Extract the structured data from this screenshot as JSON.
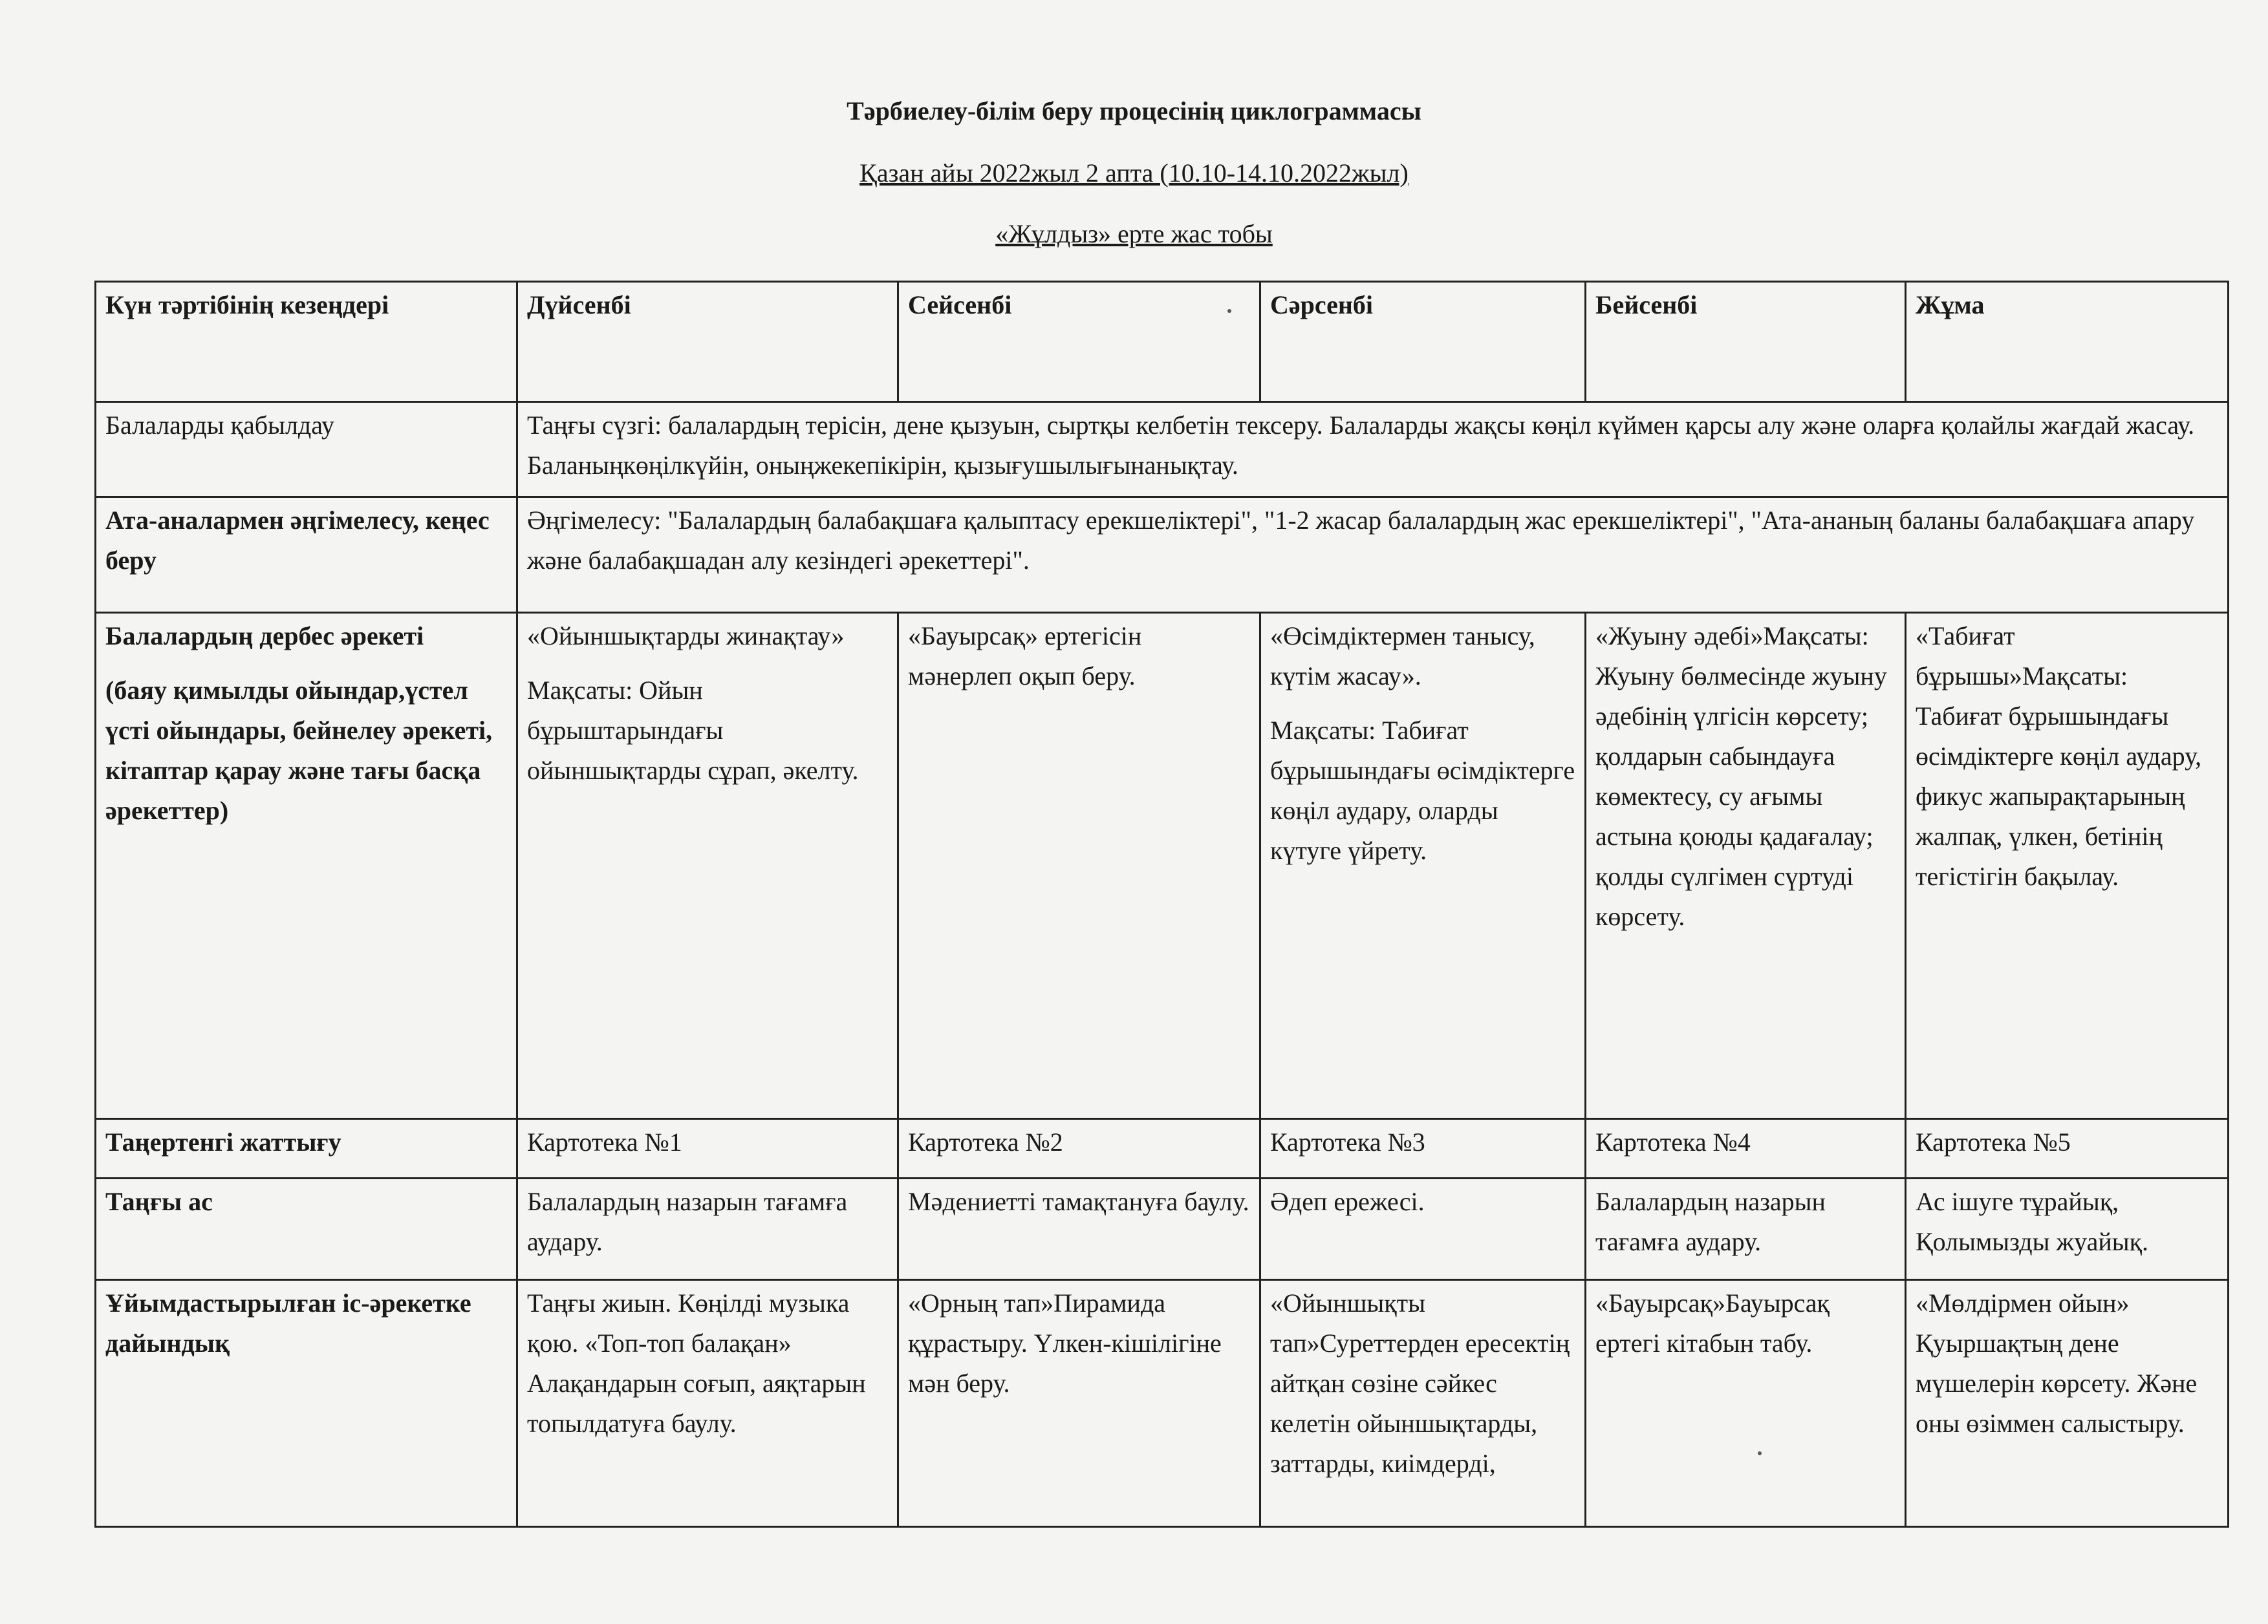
{
  "header": {
    "title": "Тәрбиелеу-білім беру процесінің циклограммасы",
    "period": "Қазан айы 2022жыл 2 апта (10.10-14.10.2022жыл)",
    "group": "«Жұлдыз» ерте жас тобы"
  },
  "table": {
    "columns": [
      "Күн тәртібінің кезеңдері",
      "Дүйсенбі",
      "Сейсенбі",
      "Сәрсенбі",
      "Бейсенбі",
      "Жұма"
    ],
    "reception": {
      "label": "Балаларды қабылдау",
      "text": "Таңғы сүзгі: балалардың терісін, дене қызуын, сыртқы келбетін тексеру. Балаларды жақсы көңіл күймен қарсы алу және оларға қолайлы жағдай жасау. Баланыңкөңілкүйін, оныңжекепікірін, қызығушылығынанықтау."
    },
    "parents": {
      "label": "Ата-аналармен әңгімелесу, кеңес беру",
      "text": "Әңгімелесу: \"Балалардың балабақшаға қалыптасу ерекшеліктері\", \"1-2 жасар балалардың жас ерекшеліктері\", \"Ата-ананың баланы балабақшаға апару және балабақшадан алу кезіндегі әрекеттері\"."
    },
    "independent": {
      "label": "Балалардың дербес әрекеті",
      "sublabel": "(баяу қимылды ойындар,үстел үсті ойындары, бейнелеу әрекеті, кітаптар  қарау және тағы басқа әрекеттер)",
      "days": [
        [
          "«Ойыншықтарды жинақтау»",
          "Мақсаты: Ойын бұрыштарындағы ойыншықтарды сұрап, әкелту."
        ],
        [
          "«Бауырсақ» ертегісін мәнерлеп оқып беру."
        ],
        [
          "«Өсімдіктермен танысу, күтім жасау».",
          "Мақсаты: Табиғат бұрышындағы өсімдіктерге көңіл аудару, оларды күтуге үйрету."
        ],
        [
          "«Жуыну әдебі»Мақсаты: Жуыну бөлмесінде жуыну әдебінің үлгісін көрсету; қолдарын сабындауға көмектесу, су ағымы астына қоюды қадағалау; қолды сүлгімен сүртуді көрсету."
        ],
        [
          "«Табиғат бұрышы»Мақсаты: Табиғат бұрышындағы өсімдіктерге көңіл аудару, фикус жапырақтарының жалпақ, үлкен, бетінің тегістігін бақылау."
        ]
      ]
    },
    "exercise": {
      "label": "Таңертенгі жаттығу",
      "days": [
        "Картотека №1",
        "Картотека №2",
        "Картотека №3",
        "Картотека №4",
        "Картотека №5"
      ]
    },
    "breakfast": {
      "label": "Таңғы ас",
      "days": [
        "Балалардың назарын тағамға аудару.",
        "Мәдениетті тамақтануға баулу.",
        "Әдеп ережесі.",
        "Балалардың назарын тағамға аудару.",
        "Ас ішуге тұрайық, Қолымызды жуайық."
      ]
    },
    "preparation": {
      "label": "Ұйымдастырылған  іс-әрекетке дайындық",
      "days": [
        "Таңғы жиын. Көңілді музыка қою. «Топ-топ балақан» Алақандарын соғып, аяқтарын топылдатуға баулу.",
        "«Орның тап»Пирамида құрастыру. Үлкен-кішілігіне мән беру.",
        "«Ойыншықты тап»Суреттерден ересектің айтқан сөзіне сәйкес келетін ойыншықтарды, заттарды, киімдерді,",
        "«Бауырсақ»Бауырсақ ертегі кітабын табу.",
        "«Мөлдірмен ойын» Қуыршақтың дене мүшелерін көрсету. Және оны өзіммен салыстыру."
      ]
    }
  }
}
